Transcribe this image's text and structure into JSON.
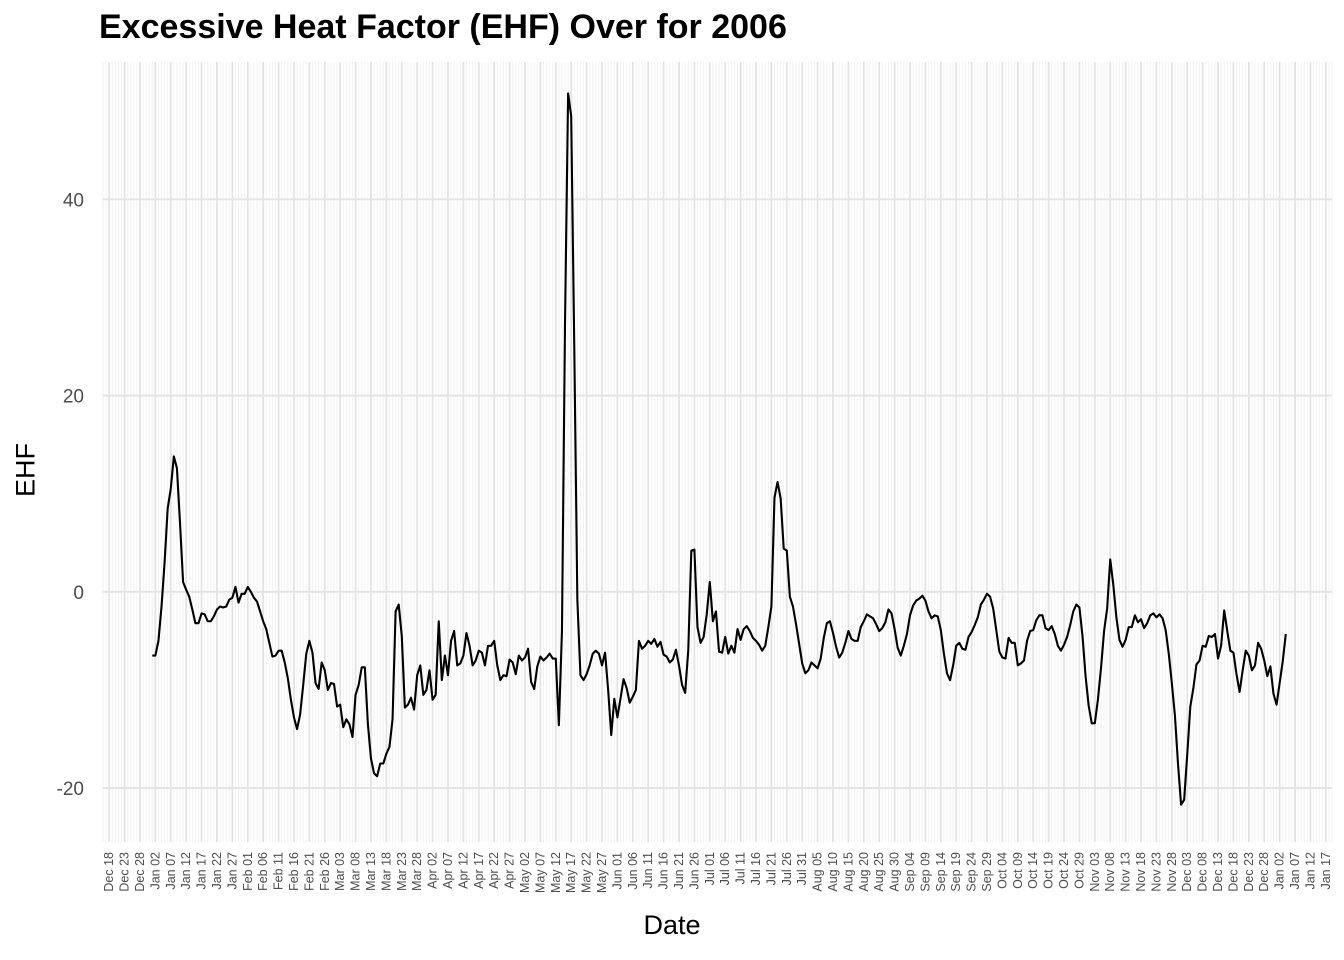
{
  "chart_data": {
    "type": "line",
    "title": "Excessive Heat Factor (EHF) Over for 2006",
    "xlabel": "Date",
    "ylabel": "EHF",
    "x_ticks": [
      "Dec 18",
      "Dec 23",
      "Dec 28",
      "Jan 02",
      "Jan 07",
      "Jan 12",
      "Jan 17",
      "Jan 22",
      "Jan 27",
      "Feb 01",
      "Feb 06",
      "Feb 11",
      "Feb 16",
      "Feb 21",
      "Feb 26",
      "Mar 03",
      "Mar 08",
      "Mar 13",
      "Mar 18",
      "Mar 23",
      "Mar 28",
      "Apr 02",
      "Apr 07",
      "Apr 12",
      "Apr 17",
      "Apr 22",
      "Apr 27",
      "May 02",
      "May 07",
      "May 12",
      "May 17",
      "May 22",
      "May 27",
      "Jun 01",
      "Jun 06",
      "Jun 11",
      "Jun 16",
      "Jun 21",
      "Jun 26",
      "Jul 01",
      "Jul 06",
      "Jul 11",
      "Jul 16",
      "Jul 21",
      "Jul 26",
      "Jul 31",
      "Aug 05",
      "Aug 10",
      "Aug 15",
      "Aug 20",
      "Aug 25",
      "Aug 30",
      "Sep 04",
      "Sep 09",
      "Sep 14",
      "Sep 19",
      "Sep 24",
      "Sep 29",
      "Oct 04",
      "Oct 09",
      "Oct 14",
      "Oct 19",
      "Oct 24",
      "Oct 29",
      "Nov 03",
      "Nov 08",
      "Nov 13",
      "Nov 18",
      "Nov 23",
      "Nov 28",
      "Dec 03",
      "Dec 08",
      "Dec 13",
      "Dec 18",
      "Dec 23",
      "Dec 28",
      "Jan 02",
      "Jan 07",
      "Jan 12",
      "Jan 17"
    ],
    "y_ticks": [
      40,
      20,
      0,
      -20
    ],
    "ylim": [
      -25.5,
      54
    ],
    "xlim": [
      "2005-12-16",
      "2007-01-19"
    ],
    "grid": true,
    "series": [
      {
        "start": "2006-01-01",
        "step_days": 1,
        "color": "#000000",
        "values": [
          -6.5,
          -6.5,
          -5,
          -1.5,
          3,
          8.5,
          10.5,
          13.8,
          12.6,
          7,
          1,
          0.2,
          -0.5,
          -1.8,
          -3.2,
          -3.2,
          -2.2,
          -2.3,
          -3,
          -3,
          -2.5,
          -1.8,
          -1.5,
          -1.6,
          -1.5,
          -0.8,
          -0.6,
          0.5,
          -1.1,
          -0.2,
          -0.2,
          0.5,
          0,
          -0.6,
          -1,
          -2,
          -3,
          -3.8,
          -5.2,
          -6.6,
          -6.5,
          -6,
          -6,
          -7.2,
          -8.8,
          -11,
          -12.8,
          -14,
          -12.5,
          -9.5,
          -6.3,
          -5,
          -6.2,
          -9.3,
          -9.9,
          -7.2,
          -8,
          -10,
          -9.3,
          -9.4,
          -11.7,
          -11.5,
          -13.8,
          -13,
          -13.5,
          -14.8,
          -10.5,
          -9.5,
          -7.7,
          -7.7,
          -13.5,
          -17,
          -18.5,
          -18.8,
          -17.5,
          -17.5,
          -16.5,
          -15.8,
          -13,
          -2,
          -1.3,
          -4.5,
          -11.8,
          -11.5,
          -10.8,
          -12,
          -8.5,
          -7.5,
          -10.5,
          -10,
          -8,
          -11,
          -10.5,
          -3,
          -9,
          -6.5,
          -8.5,
          -5,
          -4,
          -7.5,
          -7.3,
          -6.5,
          -4.2,
          -5.5,
          -7.5,
          -7,
          -6,
          -6.2,
          -7.5,
          -5.5,
          -5.5,
          -5,
          -7.5,
          -9,
          -8.5,
          -8.6,
          -6.9,
          -7.2,
          -8.4,
          -6.5,
          -7,
          -6.7,
          -5.8,
          -9.2,
          -9.9,
          -7.6,
          -6.6,
          -7,
          -6.7,
          -6.3,
          -6.8,
          -6.8,
          -13.6,
          -4,
          27.5,
          50.8,
          48.5,
          25,
          -0.8,
          -8.5,
          -9,
          -8.4,
          -7.5,
          -6.3,
          -6,
          -6.3,
          -7.5,
          -6.2,
          -10,
          -14.6,
          -10.9,
          -12.8,
          -10.9,
          -8.9,
          -9.8,
          -11.3,
          -10.7,
          -10,
          -5,
          -5.8,
          -5.5,
          -5,
          -5.3,
          -4.8,
          -5.6,
          -5.1,
          -6.4,
          -6.6,
          -7.2,
          -6.9,
          -5.9,
          -7.5,
          -9.5,
          -10.3,
          -6,
          4.2,
          4.3,
          -3.6,
          -5.2,
          -4.6,
          -2.3,
          1,
          -3,
          -2,
          -6.1,
          -6.2,
          -4.6,
          -6.3,
          -5.5,
          -6.2,
          -3.8,
          -4.9,
          -3.8,
          -3.5,
          -4,
          -4.7,
          -5,
          -5.4,
          -6,
          -5.5,
          -3.6,
          -1.5,
          9.6,
          11.2,
          9.5,
          4.4,
          4.2,
          -0.5,
          -1.5,
          -3.3,
          -5.3,
          -7.3,
          -8.3,
          -8,
          -7.2,
          -7.5,
          -7.8,
          -6.8,
          -4.7,
          -3.2,
          -3,
          -4.2,
          -5.6,
          -6.7,
          -6.2,
          -5.2,
          -4,
          -4.8,
          -5,
          -5,
          -3.6,
          -3,
          -2.3,
          -2.5,
          -2.7,
          -3.3,
          -4,
          -3.7,
          -3.1,
          -1.8,
          -2.2,
          -3.8,
          -5.7,
          -6.5,
          -5.5,
          -4.3,
          -2.4,
          -1.4,
          -0.9,
          -0.7,
          -0.4,
          -0.9,
          -2,
          -2.7,
          -2.4,
          -2.5,
          -3.9,
          -6.3,
          -8.3,
          -9,
          -7.5,
          -5.5,
          -5.2,
          -5.8,
          -5.9,
          -4.6,
          -4.1,
          -3.4,
          -2.6,
          -1.3,
          -0.8,
          -0.2,
          -0.5,
          -1.7,
          -3.9,
          -6.1,
          -6.7,
          -6.8,
          -4.7,
          -5.2,
          -5.2,
          -7.5,
          -7.3,
          -7,
          -5,
          -4,
          -3.9,
          -2.9,
          -2.4,
          -2.4,
          -3.7,
          -3.9,
          -3.5,
          -4.3,
          -5.5,
          -6,
          -5.4,
          -4.6,
          -3.4,
          -2,
          -1.3,
          -1.6,
          -4.5,
          -8.6,
          -11.6,
          -13.4,
          -13.4,
          -11,
          -7.8,
          -4,
          -1.7,
          3.3,
          0.7,
          -2.6,
          -4.9,
          -5.6,
          -4.9,
          -3.6,
          -3.6,
          -2.4,
          -3.1,
          -2.8,
          -3.7,
          -3.2,
          -2.4,
          -2.2,
          -2.6,
          -2.3,
          -2.7,
          -3.9,
          -6.3,
          -9.3,
          -12.6,
          -17.5,
          -21.7,
          -21.2,
          -16.6,
          -11.7,
          -9.8,
          -7.4,
          -7,
          -5.5,
          -5.6,
          -4.5,
          -4.6,
          -4.3,
          -6.8,
          -5.5,
          -1.9,
          -4,
          -6,
          -6.2,
          -8.4,
          -10.2,
          -8,
          -6,
          -6.5,
          -8,
          -7.5,
          -5.2,
          -5.8,
          -7,
          -8.6,
          -7.6,
          -10.4,
          -11.5,
          -9.3,
          -7.1,
          -4.3
        ]
      }
    ]
  }
}
